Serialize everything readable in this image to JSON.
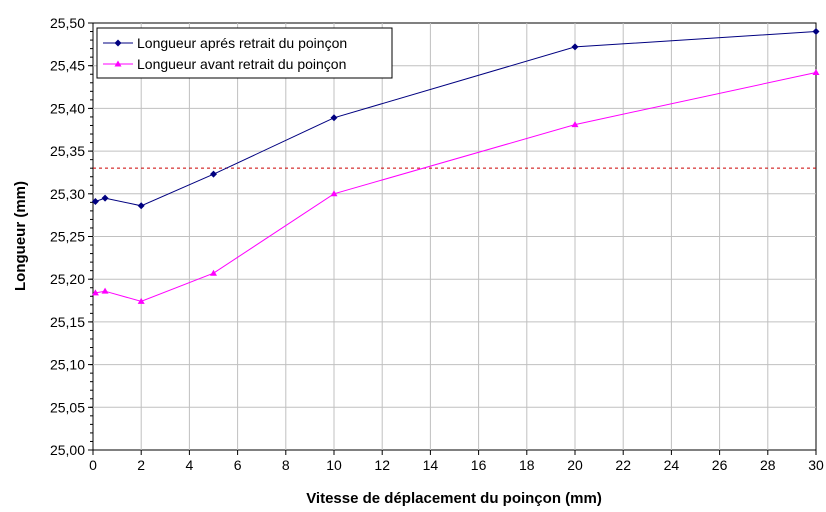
{
  "chart_data": {
    "type": "line",
    "xlabel": "Vitesse de déplacement du poinçon (mm)",
    "ylabel": "Longueur (mm)",
    "xlim": [
      0,
      30
    ],
    "ylim": [
      25.0,
      25.5
    ],
    "x_ticks": [
      "0",
      "2",
      "4",
      "6",
      "8",
      "10",
      "12",
      "14",
      "16",
      "18",
      "20",
      "22",
      "24",
      "26",
      "28",
      "30"
    ],
    "y_ticks": [
      "25,00",
      "25,05",
      "25,10",
      "25,15",
      "25,20",
      "25,25",
      "25,30",
      "25,35",
      "25,40",
      "25,45",
      "25,50"
    ],
    "grid": true,
    "legend_position": "top-left",
    "series": [
      {
        "name": "Longueur aprés retrait du poinçon",
        "color": "#000080",
        "marker": "diamond",
        "points": [
          {
            "x": 0.1,
            "y": 25.291
          },
          {
            "x": 0.5,
            "y": 25.295
          },
          {
            "x": 2,
            "y": 25.286
          },
          {
            "x": 5,
            "y": 25.323
          },
          {
            "x": 10,
            "y": 25.389
          },
          {
            "x": 20,
            "y": 25.472
          },
          {
            "x": 30,
            "y": 25.49
          }
        ]
      },
      {
        "name": "Longueur avant retrait du poinçon",
        "color": "#ff00ff",
        "marker": "triangle",
        "points": [
          {
            "x": 0.1,
            "y": 25.184
          },
          {
            "x": 0.5,
            "y": 25.186
          },
          {
            "x": 2,
            "y": 25.174
          },
          {
            "x": 5,
            "y": 25.207
          },
          {
            "x": 10,
            "y": 25.3
          },
          {
            "x": 20,
            "y": 25.381
          },
          {
            "x": 30,
            "y": 25.442
          }
        ]
      }
    ],
    "reference_line": {
      "y": 25.33,
      "color": "#cc0000",
      "style": "dashed"
    }
  }
}
